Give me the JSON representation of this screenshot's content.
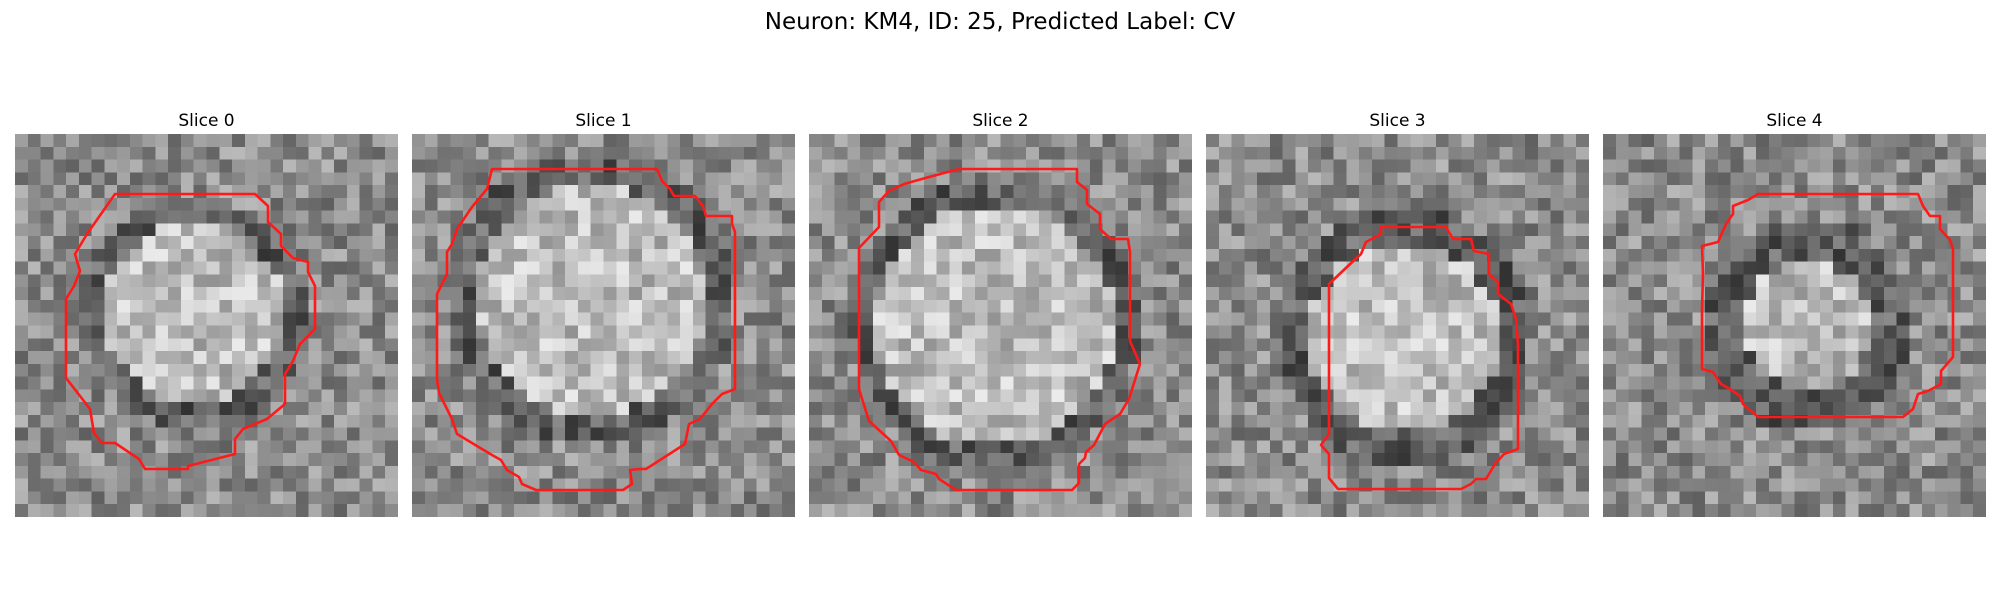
{
  "figure": {
    "title": "Neuron: KM4, ID: 25, Predicted Label: CV",
    "contour_color": "#ff1a1a",
    "colormap": "grayscale"
  },
  "slices": [
    {
      "label": "Slice 0"
    },
    {
      "label": "Slice 1"
    },
    {
      "label": "Slice 2"
    },
    {
      "label": "Slice 3"
    },
    {
      "label": "Slice 4"
    }
  ]
}
